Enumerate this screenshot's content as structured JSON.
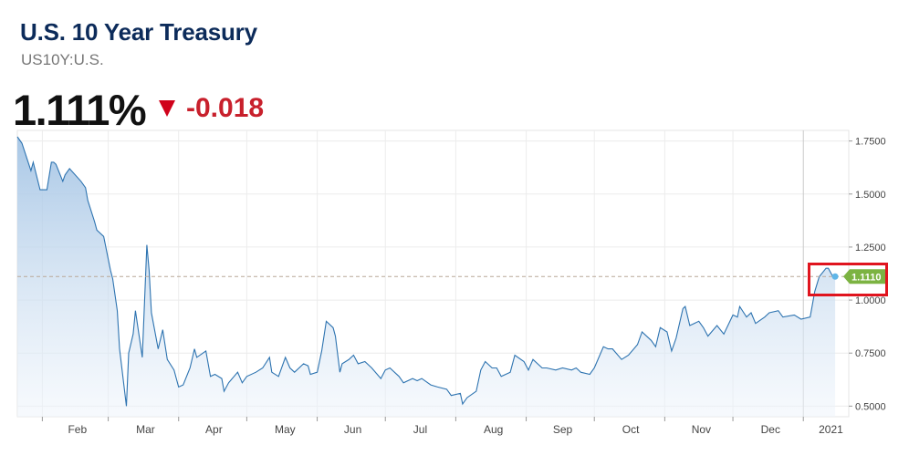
{
  "header": {
    "title": "U.S. 10 Year Treasury",
    "symbol": "US10Y:U.S.",
    "price": "1.111%",
    "change": "-0.018",
    "change_color": "#c8202c"
  },
  "chart_data": {
    "type": "area",
    "x_labels": [
      "Feb",
      "Mar",
      "Apr",
      "May",
      "Jun",
      "Jul",
      "Aug",
      "Sep",
      "Oct",
      "Nov",
      "Dec",
      "2021"
    ],
    "y_ticks": [
      "1.7500",
      "1.5000",
      "1.2500",
      "1.0000",
      "0.7500",
      "0.5000"
    ],
    "ylim": [
      0.45,
      1.8
    ],
    "grid": true,
    "current_value_label": "1.1110",
    "current_value": 1.111,
    "line_color": "#2d73b0",
    "marker_color": "#5fb6e8",
    "value_label_color": "#7cb342",
    "series": [
      {
        "points": [
          [
            "2020-01-21",
            1.77
          ],
          [
            "2020-01-23",
            1.74
          ],
          [
            "2020-01-27",
            1.61
          ],
          [
            "2020-01-28",
            1.65
          ],
          [
            "2020-01-31",
            1.52
          ],
          [
            "2020-02-03",
            1.52
          ],
          [
            "2020-02-05",
            1.65
          ],
          [
            "2020-02-06",
            1.65
          ],
          [
            "2020-02-07",
            1.64
          ],
          [
            "2020-02-10",
            1.56
          ],
          [
            "2020-02-11",
            1.59
          ],
          [
            "2020-02-13",
            1.62
          ],
          [
            "2020-02-18",
            1.56
          ],
          [
            "2020-02-20",
            1.53
          ],
          [
            "2020-02-21",
            1.47
          ],
          [
            "2020-02-24",
            1.37
          ],
          [
            "2020-02-25",
            1.33
          ],
          [
            "2020-02-28",
            1.3
          ],
          [
            "2020-03-02",
            1.14
          ],
          [
            "2020-03-03",
            1.1
          ],
          [
            "2020-03-05",
            0.95
          ],
          [
            "2020-03-06",
            0.77
          ],
          [
            "2020-03-09",
            0.5
          ],
          [
            "2020-03-10",
            0.75
          ],
          [
            "2020-03-12",
            0.84
          ],
          [
            "2020-03-13",
            0.95
          ],
          [
            "2020-03-16",
            0.73
          ],
          [
            "2020-03-18",
            1.26
          ],
          [
            "2020-03-19",
            1.14
          ],
          [
            "2020-03-20",
            0.94
          ],
          [
            "2020-03-23",
            0.77
          ],
          [
            "2020-03-25",
            0.86
          ],
          [
            "2020-03-27",
            0.72
          ],
          [
            "2020-03-30",
            0.67
          ],
          [
            "2020-04-01",
            0.59
          ],
          [
            "2020-04-03",
            0.6
          ],
          [
            "2020-04-06",
            0.68
          ],
          [
            "2020-04-08",
            0.77
          ],
          [
            "2020-04-09",
            0.73
          ],
          [
            "2020-04-13",
            0.76
          ],
          [
            "2020-04-15",
            0.64
          ],
          [
            "2020-04-17",
            0.65
          ],
          [
            "2020-04-20",
            0.63
          ],
          [
            "2020-04-21",
            0.57
          ],
          [
            "2020-04-23",
            0.61
          ],
          [
            "2020-04-27",
            0.66
          ],
          [
            "2020-04-29",
            0.61
          ],
          [
            "2020-05-01",
            0.64
          ],
          [
            "2020-05-05",
            0.66
          ],
          [
            "2020-05-08",
            0.68
          ],
          [
            "2020-05-11",
            0.73
          ],
          [
            "2020-05-12",
            0.66
          ],
          [
            "2020-05-15",
            0.64
          ],
          [
            "2020-05-18",
            0.73
          ],
          [
            "2020-05-20",
            0.68
          ],
          [
            "2020-05-22",
            0.66
          ],
          [
            "2020-05-26",
            0.7
          ],
          [
            "2020-05-28",
            0.69
          ],
          [
            "2020-05-29",
            0.65
          ],
          [
            "2020-06-01",
            0.66
          ],
          [
            "2020-06-03",
            0.76
          ],
          [
            "2020-06-05",
            0.9
          ],
          [
            "2020-06-08",
            0.87
          ],
          [
            "2020-06-09",
            0.83
          ],
          [
            "2020-06-11",
            0.66
          ],
          [
            "2020-06-12",
            0.7
          ],
          [
            "2020-06-15",
            0.72
          ],
          [
            "2020-06-17",
            0.74
          ],
          [
            "2020-06-19",
            0.7
          ],
          [
            "2020-06-22",
            0.71
          ],
          [
            "2020-06-25",
            0.68
          ],
          [
            "2020-06-29",
            0.63
          ],
          [
            "2020-07-01",
            0.67
          ],
          [
            "2020-07-03",
            0.68
          ],
          [
            "2020-07-07",
            0.64
          ],
          [
            "2020-07-09",
            0.61
          ],
          [
            "2020-07-13",
            0.63
          ],
          [
            "2020-07-15",
            0.62
          ],
          [
            "2020-07-17",
            0.63
          ],
          [
            "2020-07-21",
            0.6
          ],
          [
            "2020-07-24",
            0.59
          ],
          [
            "2020-07-28",
            0.58
          ],
          [
            "2020-07-30",
            0.55
          ],
          [
            "2020-08-03",
            0.56
          ],
          [
            "2020-08-04",
            0.51
          ],
          [
            "2020-08-06",
            0.54
          ],
          [
            "2020-08-10",
            0.57
          ],
          [
            "2020-08-12",
            0.67
          ],
          [
            "2020-08-14",
            0.71
          ],
          [
            "2020-08-17",
            0.68
          ],
          [
            "2020-08-19",
            0.68
          ],
          [
            "2020-08-21",
            0.64
          ],
          [
            "2020-08-25",
            0.66
          ],
          [
            "2020-08-27",
            0.74
          ],
          [
            "2020-08-31",
            0.71
          ],
          [
            "2020-09-02",
            0.67
          ],
          [
            "2020-09-04",
            0.72
          ],
          [
            "2020-09-08",
            0.68
          ],
          [
            "2020-09-10",
            0.68
          ],
          [
            "2020-09-14",
            0.67
          ],
          [
            "2020-09-17",
            0.68
          ],
          [
            "2020-09-21",
            0.67
          ],
          [
            "2020-09-23",
            0.68
          ],
          [
            "2020-09-25",
            0.66
          ],
          [
            "2020-09-29",
            0.65
          ],
          [
            "2020-10-01",
            0.68
          ],
          [
            "2020-10-05",
            0.78
          ],
          [
            "2020-10-07",
            0.77
          ],
          [
            "2020-10-09",
            0.77
          ],
          [
            "2020-10-13",
            0.72
          ],
          [
            "2020-10-16",
            0.74
          ],
          [
            "2020-10-20",
            0.79
          ],
          [
            "2020-10-22",
            0.85
          ],
          [
            "2020-10-26",
            0.81
          ],
          [
            "2020-10-28",
            0.78
          ],
          [
            "2020-10-30",
            0.87
          ],
          [
            "2020-11-02",
            0.85
          ],
          [
            "2020-11-04",
            0.76
          ],
          [
            "2020-11-06",
            0.82
          ],
          [
            "2020-11-09",
            0.96
          ],
          [
            "2020-11-10",
            0.97
          ],
          [
            "2020-11-12",
            0.88
          ],
          [
            "2020-11-16",
            0.9
          ],
          [
            "2020-11-18",
            0.87
          ],
          [
            "2020-11-20",
            0.83
          ],
          [
            "2020-11-24",
            0.88
          ],
          [
            "2020-11-27",
            0.84
          ],
          [
            "2020-12-01",
            0.93
          ],
          [
            "2020-12-03",
            0.92
          ],
          [
            "2020-12-04",
            0.97
          ],
          [
            "2020-12-07",
            0.92
          ],
          [
            "2020-12-09",
            0.94
          ],
          [
            "2020-12-11",
            0.89
          ],
          [
            "2020-12-15",
            0.92
          ],
          [
            "2020-12-17",
            0.94
          ],
          [
            "2020-12-21",
            0.95
          ],
          [
            "2020-12-23",
            0.92
          ],
          [
            "2020-12-28",
            0.93
          ],
          [
            "2020-12-31",
            0.91
          ],
          [
            "2021-01-04",
            0.92
          ],
          [
            "2021-01-06",
            1.04
          ],
          [
            "2021-01-08",
            1.11
          ],
          [
            "2021-01-11",
            1.15
          ],
          [
            "2021-01-12",
            1.15
          ],
          [
            "2021-01-14",
            1.11
          ],
          [
            "2021-01-15",
            1.11
          ]
        ]
      }
    ]
  }
}
